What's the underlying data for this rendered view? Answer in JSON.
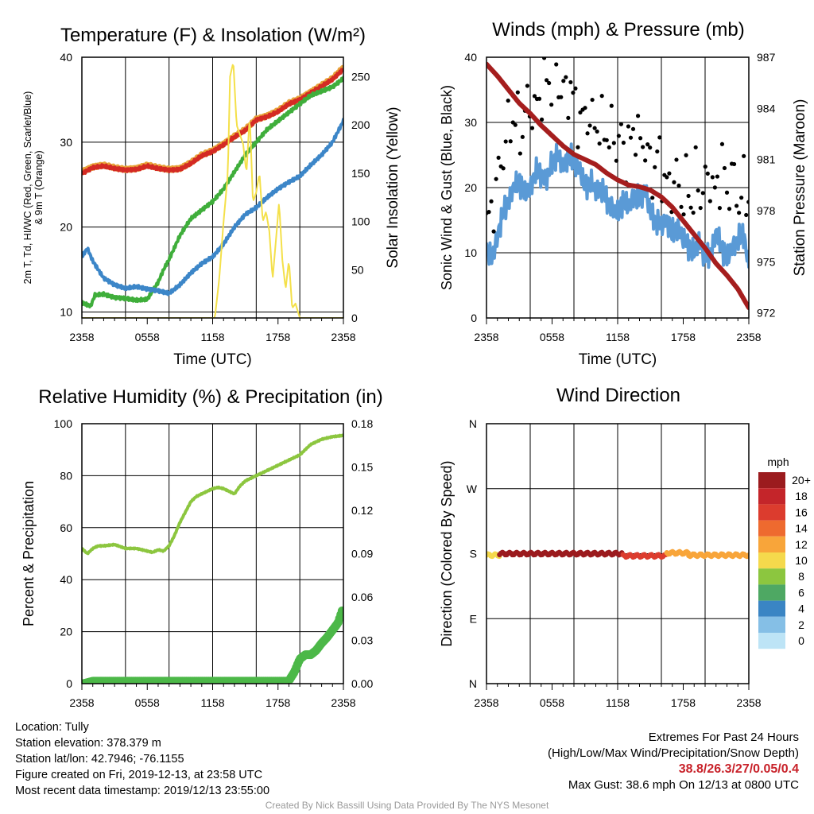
{
  "chart_data": [
    {
      "type": "line",
      "title": "Temperature (F) & Insolation (W/m²)",
      "xlabel": "Time (UTC)",
      "ylabel": "2m T, Td, HI/WC (Red, Green, Scarlet/Blue) & 9m T (Orange)",
      "y2label": "Solar Insolation (Yellow)",
      "x_ticks": [
        "2358",
        "0558",
        "1158",
        "1758",
        "2358"
      ],
      "ylim": [
        9.3,
        40
      ],
      "y_ticks": [
        10,
        20,
        30,
        40
      ],
      "y2lim": [
        0,
        270
      ],
      "y2_ticks": [
        0,
        50,
        100,
        150,
        200,
        250
      ],
      "grid": true,
      "series": [
        {
          "color": "#e8a33a",
          "axis": "left",
          "hours": [
            0,
            1,
            2,
            3,
            4,
            5,
            6,
            7,
            8,
            9,
            10,
            11,
            12,
            13,
            14,
            15,
            16,
            17,
            18,
            19,
            20,
            21,
            22,
            23,
            24
          ],
          "values": [
            26.5,
            27.1,
            27.3,
            27.0,
            26.8,
            26.9,
            27.3,
            27.0,
            26.8,
            26.9,
            27.6,
            28.5,
            29.0,
            29.8,
            30.7,
            31.5,
            32.7,
            33.1,
            33.7,
            34.6,
            35.1,
            35.9,
            36.7,
            37.5,
            38.8
          ]
        },
        {
          "color": "#d42a24",
          "axis": "left",
          "hours": [
            0,
            1,
            2,
            3,
            4,
            5,
            6,
            7,
            8,
            9,
            10,
            11,
            12,
            13,
            14,
            15,
            16,
            17,
            18,
            19,
            20,
            21,
            22,
            23,
            24
          ],
          "values": [
            26.3,
            27.0,
            27.2,
            26.9,
            26.7,
            26.8,
            27.2,
            26.9,
            26.7,
            26.8,
            27.5,
            28.4,
            28.9,
            29.7,
            30.6,
            31.4,
            32.6,
            33.0,
            33.6,
            34.5,
            35.0,
            35.8,
            36.6,
            37.4,
            38.6
          ]
        },
        {
          "color": "#3fae3b",
          "axis": "left",
          "hours": [
            0,
            0.8,
            1.2,
            2,
            3,
            4,
            5,
            6,
            7,
            7.5,
            8,
            9,
            10,
            11,
            12,
            13,
            14,
            15,
            16,
            17,
            18,
            19,
            20,
            21,
            22,
            23,
            24
          ],
          "values": [
            11.1,
            10.7,
            12.0,
            12.1,
            11.7,
            11.6,
            11.4,
            11.5,
            13.5,
            15.0,
            16.2,
            19.0,
            21.0,
            22.0,
            23.0,
            24.5,
            26.5,
            28.5,
            30.0,
            31.5,
            32.5,
            33.5,
            34.5,
            35.5,
            36.0,
            36.5,
            37.5
          ]
        },
        {
          "color": "#3c86c8",
          "axis": "left",
          "hours": [
            0,
            0.5,
            1,
            2,
            3,
            4,
            5,
            6,
            7,
            8,
            9,
            10,
            11,
            12,
            13,
            14,
            15,
            16,
            17,
            18,
            19,
            20,
            21,
            22,
            23,
            24
          ],
          "values": [
            16.5,
            17.5,
            16.0,
            14.0,
            13.2,
            12.8,
            13.0,
            12.7,
            12.5,
            12.2,
            13.2,
            14.6,
            15.7,
            16.5,
            18.0,
            20.0,
            21.5,
            22.3,
            23.5,
            24.5,
            25.3,
            26.0,
            27.3,
            28.5,
            30.0,
            32.5
          ]
        },
        {
          "color": "#f4e04a",
          "axis": "right",
          "hours": [
            0,
            12.2,
            12.6,
            13.0,
            13.4,
            13.6,
            13.9,
            14.2,
            14.5,
            14.8,
            15.1,
            15.4,
            15.7,
            16.0,
            16.3,
            16.6,
            16.9,
            17.2,
            17.5,
            17.8,
            18.1,
            18.4,
            18.7,
            19.0,
            19.3,
            19.6,
            20.0,
            24
          ],
          "values": [
            0,
            0,
            40,
            100,
            150,
            250,
            265,
            200,
            190,
            180,
            150,
            210,
            120,
            130,
            150,
            100,
            110,
            90,
            40,
            80,
            120,
            60,
            30,
            60,
            10,
            15,
            0,
            0
          ]
        }
      ]
    },
    {
      "type": "line",
      "title": "Winds (mph) & Pressure (mb)",
      "xlabel": "Time (UTC)",
      "ylabel": "Sonic Wind & Gust (Blue, Black)",
      "y2label": "Station Pressure (Maroon)",
      "x_ticks": [
        "2358",
        "0558",
        "1158",
        "1758",
        "2358"
      ],
      "ylim": [
        0,
        40
      ],
      "y_ticks": [
        0,
        10,
        20,
        30,
        40
      ],
      "y2lim": [
        971.7,
        987
      ],
      "y2_ticks": [
        972,
        975,
        978,
        981,
        984,
        987
      ],
      "grid": true,
      "series": [
        {
          "color": "#5a9ad6",
          "axis": "left",
          "name_key": "wind",
          "hours": [
            0,
            0.5,
            1,
            1.5,
            2,
            2.5,
            3,
            3.5,
            4,
            4.5,
            5,
            5.5,
            6,
            6.5,
            7,
            7.5,
            8,
            8.5,
            9,
            9.5,
            10,
            10.5,
            11,
            11.5,
            12,
            12.5,
            13,
            13.5,
            14,
            14.5,
            15,
            15.5,
            16,
            16.5,
            17,
            17.5,
            18,
            18.5,
            19,
            19.5,
            20,
            20.5,
            21,
            21.5,
            22,
            22.5,
            23,
            23.5,
            24
          ],
          "values": [
            10.5,
            9.0,
            12.5,
            16,
            18,
            20,
            21,
            19,
            20,
            22.5,
            22,
            21,
            24,
            25,
            23,
            25,
            24,
            23,
            20,
            21,
            19.5,
            20,
            18,
            17,
            16,
            18,
            17,
            19,
            18,
            20,
            16,
            15,
            14,
            15,
            13,
            14,
            12,
            11,
            10,
            12,
            9,
            10,
            13,
            11,
            9,
            11,
            12,
            13,
            8
          ]
        },
        {
          "color": "#000000",
          "axis": "left",
          "name_key": "gust",
          "hours": [
            0,
            0.4,
            0.8,
            1.2,
            1.6,
            2,
            2.4,
            2.8,
            3.2,
            3.6,
            4,
            4.4,
            4.8,
            5.2,
            5.6,
            6,
            6.4,
            6.8,
            7.2,
            7.6,
            8,
            8.4,
            8.8,
            9.2,
            9.6,
            10,
            10.4,
            10.8,
            11.2,
            11.6,
            12,
            12.4,
            12.8,
            13.2,
            13.6,
            14,
            14.4,
            14.8,
            15.2,
            15.6,
            16,
            16.4,
            16.8,
            17.2,
            17.6,
            18,
            18.4,
            18.8,
            19.2,
            19.6,
            20,
            20.4,
            20.8,
            21.2,
            21.6,
            22,
            22.4,
            22.8,
            23.2,
            23.6,
            24
          ],
          "values": [
            14,
            16,
            19,
            23,
            26,
            29,
            31,
            30,
            28,
            32,
            33,
            31,
            34,
            35,
            37,
            36,
            38,
            35,
            34,
            36,
            33,
            31,
            30,
            32,
            29,
            31,
            28,
            30,
            27,
            29,
            26,
            28,
            25,
            27,
            30,
            26,
            28,
            24,
            22,
            25,
            23,
            21,
            19,
            22,
            20,
            18,
            21,
            17,
            22,
            19,
            20,
            23,
            18,
            21,
            24,
            19,
            22,
            20,
            17,
            21,
            18
          ]
        },
        {
          "color": "#a51e1e",
          "axis": "right",
          "name_key": "pressure",
          "hours": [
            0,
            1,
            2,
            3,
            4,
            5,
            6,
            7,
            8,
            9,
            10,
            11,
            12,
            13,
            14,
            15,
            16,
            17,
            18,
            19,
            20,
            21,
            22,
            23,
            24
          ],
          "values": [
            986.6,
            985.9,
            985.1,
            984.3,
            983.7,
            983.0,
            982.4,
            981.8,
            981.3,
            981.0,
            980.7,
            980.2,
            979.8,
            979.5,
            979.4,
            979.2,
            978.8,
            978.2,
            977.4,
            976.6,
            975.8,
            974.9,
            974.2,
            973.4,
            972.3
          ]
        }
      ]
    },
    {
      "type": "line",
      "title": "Relative Humidity (%) & Precipitation (in)",
      "ylabel": "Percent & Precipitation",
      "x_ticks": [
        "2358",
        "0558",
        "1158",
        "1758",
        "2358"
      ],
      "ylim": [
        0,
        100
      ],
      "y_ticks": [
        0,
        20,
        40,
        60,
        80,
        100
      ],
      "y2lim": [
        0,
        0.18
      ],
      "y2_ticks": [
        "0.00",
        "0.03",
        "0.06",
        "0.09",
        "0.12",
        "0.15",
        "0.18"
      ],
      "grid": true,
      "series": [
        {
          "color": "#8cc63f",
          "axis": "left",
          "name_key": "rh",
          "hours": [
            0,
            0.5,
            1,
            1.5,
            2,
            3,
            4,
            5,
            6,
            6.5,
            7,
            7.5,
            8,
            8.5,
            9,
            9.5,
            10,
            10.5,
            11,
            11.5,
            12,
            12.5,
            13,
            13.5,
            14,
            14.5,
            15,
            16,
            17,
            18,
            19,
            20,
            21,
            22,
            23,
            24
          ],
          "values": [
            52,
            50,
            52,
            53,
            53,
            53.5,
            52,
            52,
            51,
            50.5,
            51.5,
            51,
            53,
            57,
            62,
            66,
            70,
            72,
            73,
            74,
            75,
            75.5,
            75,
            74,
            73,
            76,
            78,
            80,
            82,
            84,
            86,
            88,
            92,
            94,
            95,
            95.5
          ]
        },
        {
          "color": "#4cb848",
          "axis": "right",
          "name_key": "precip",
          "hours": [
            0,
            1,
            2,
            4,
            6,
            8,
            10,
            12,
            14,
            16,
            18,
            19,
            19.5,
            20,
            20.5,
            21,
            21.5,
            22,
            22.5,
            23,
            23.5,
            24
          ],
          "values": [
            0,
            0.002,
            0.002,
            0.002,
            0.002,
            0.002,
            0.002,
            0.002,
            0.002,
            0.002,
            0.002,
            0.002,
            0.008,
            0.017,
            0.02,
            0.02,
            0.023,
            0.028,
            0.032,
            0.037,
            0.042,
            0.053
          ]
        }
      ]
    },
    {
      "type": "scatter",
      "title": "Wind Direction",
      "ylabel": "Direction (Colored By Speed)",
      "x_ticks": [
        "2358",
        "0558",
        "1158",
        "1758",
        "2358"
      ],
      "y_ticks": [
        "N",
        "E",
        "S",
        "W",
        "N"
      ],
      "ylim": [
        0,
        360
      ],
      "grid": true,
      "legend": {
        "title": "mph",
        "labels": [
          "20+",
          "18",
          "16",
          "14",
          "12",
          "10",
          "8",
          "6",
          "4",
          "2",
          "0"
        ],
        "colors": [
          "#9b1b1e",
          "#c4252a",
          "#dc3c2e",
          "#ee6a2f",
          "#f8a53a",
          "#f5d94c",
          "#8cc63f",
          "#4ea863",
          "#3a85c4",
          "#85bfe6",
          "#bde4f6"
        ]
      },
      "segments": [
        {
          "from_hour": 0,
          "to_hour": 1.2,
          "dir": 178,
          "color_index": 5
        },
        {
          "from_hour": 1.2,
          "to_hour": 12.5,
          "dir": 180,
          "color_index": 0
        },
        {
          "from_hour": 12.5,
          "to_hour": 16.5,
          "dir": 177,
          "color_index": 2
        },
        {
          "from_hour": 16.5,
          "to_hour": 18.5,
          "dir": 181,
          "color_index": 4
        },
        {
          "from_hour": 18.5,
          "to_hour": 24,
          "dir": 178,
          "color_index": 4
        }
      ]
    }
  ],
  "info": {
    "location": "Location: Tully",
    "elevation": "Station elevation: 378.379 m",
    "latlon": "Station lat/lon: 42.7946; -76.1155",
    "created": "Figure created on Fri, 2019-12-13, at 23:58 UTC",
    "recent": "Most recent data timestamp: 2019/12/13 23:55:00"
  },
  "extremes": {
    "title": "Extremes For Past 24 Hours",
    "subtitle": "(High/Low/Max Wind/Precipitation/Snow Depth)",
    "value": "38.8/26.3/27/0.05/0.4",
    "gust": "Max Gust: 38.6 mph On 12/13 at 0800 UTC"
  },
  "credit": "Created By Nick Bassill Using Data Provided By The NYS Mesonet"
}
